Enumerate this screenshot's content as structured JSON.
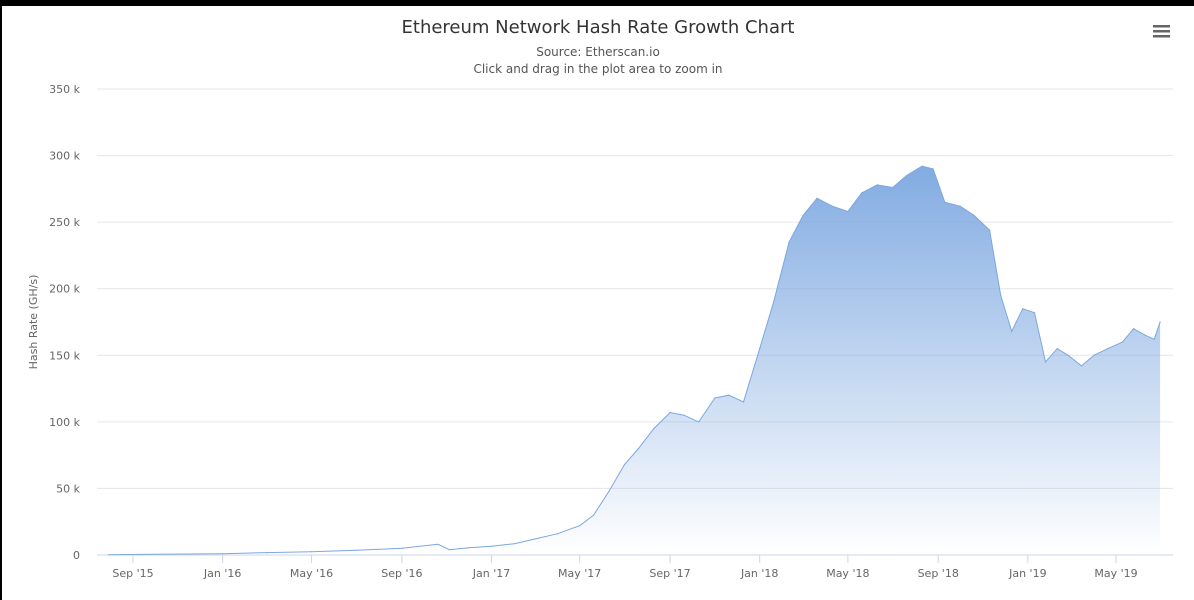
{
  "chart_data": {
    "type": "area",
    "title": "Ethereum Network Hash Rate Growth Chart",
    "subtitle": "Source: Etherscan.io",
    "instruction": "Click and drag in the plot area to zoom in",
    "xlabel": "",
    "ylabel": "Hash Rate (GH/s)",
    "ylim": [
      0,
      350000
    ],
    "y_ticks": [
      0,
      50000,
      100000,
      150000,
      200000,
      250000,
      300000,
      350000
    ],
    "y_tick_labels": [
      "0",
      "50 k",
      "100 k",
      "150 k",
      "200 k",
      "250 k",
      "300 k",
      "350 k"
    ],
    "x_ticks": [
      "2015-09-01",
      "2016-01-01",
      "2016-05-01",
      "2016-09-01",
      "2017-01-01",
      "2017-05-01",
      "2017-09-01",
      "2018-01-01",
      "2018-05-01",
      "2018-09-01",
      "2019-01-01",
      "2019-05-01"
    ],
    "x_tick_labels": [
      "Sep '15",
      "Jan '16",
      "May '16",
      "Sep '16",
      "Jan '17",
      "May '17",
      "Sep '17",
      "Jan '18",
      "May '18",
      "Sep '18",
      "Jan '19",
      "May '19"
    ],
    "grid": true,
    "legend": "none",
    "series": [
      {
        "name": "Hash Rate",
        "color": "#7ca7e0",
        "x": [
          "2015-07-30",
          "2015-10-01",
          "2016-01-01",
          "2016-03-01",
          "2016-05-01",
          "2016-07-01",
          "2016-09-01",
          "2016-10-20",
          "2016-11-05",
          "2016-12-01",
          "2017-01-01",
          "2017-02-01",
          "2017-03-01",
          "2017-04-01",
          "2017-05-01",
          "2017-05-20",
          "2017-06-10",
          "2017-07-01",
          "2017-07-20",
          "2017-08-10",
          "2017-09-01",
          "2017-09-20",
          "2017-10-10",
          "2017-11-01",
          "2017-11-20",
          "2017-12-10",
          "2018-01-01",
          "2018-01-20",
          "2018-02-10",
          "2018-03-01",
          "2018-03-20",
          "2018-04-10",
          "2018-05-01",
          "2018-05-20",
          "2018-06-10",
          "2018-07-01",
          "2018-07-20",
          "2018-08-10",
          "2018-08-25",
          "2018-09-10",
          "2018-10-01",
          "2018-10-20",
          "2018-11-10",
          "2018-11-25",
          "2018-12-10",
          "2018-12-25",
          "2019-01-10",
          "2019-01-25",
          "2019-02-10",
          "2019-02-25",
          "2019-03-15",
          "2019-04-01",
          "2019-04-20",
          "2019-05-10",
          "2019-05-25",
          "2019-06-10",
          "2019-06-22",
          "2019-06-30"
        ],
        "values": [
          200,
          500,
          1000,
          1800,
          2500,
          3500,
          5000,
          8000,
          4000,
          5500,
          6500,
          8500,
          12000,
          16000,
          22000,
          30000,
          48000,
          68000,
          80000,
          95000,
          107000,
          105000,
          100000,
          118000,
          120000,
          115000,
          155000,
          190000,
          235000,
          255000,
          268000,
          262000,
          258000,
          272000,
          278000,
          276000,
          285000,
          292000,
          290000,
          265000,
          262000,
          255000,
          244000,
          195000,
          168000,
          185000,
          182000,
          145000,
          155000,
          150000,
          142000,
          150000,
          155000,
          160000,
          170000,
          165000,
          162000,
          175000
        ]
      }
    ]
  },
  "menu_icon": "hamburger-menu-icon"
}
